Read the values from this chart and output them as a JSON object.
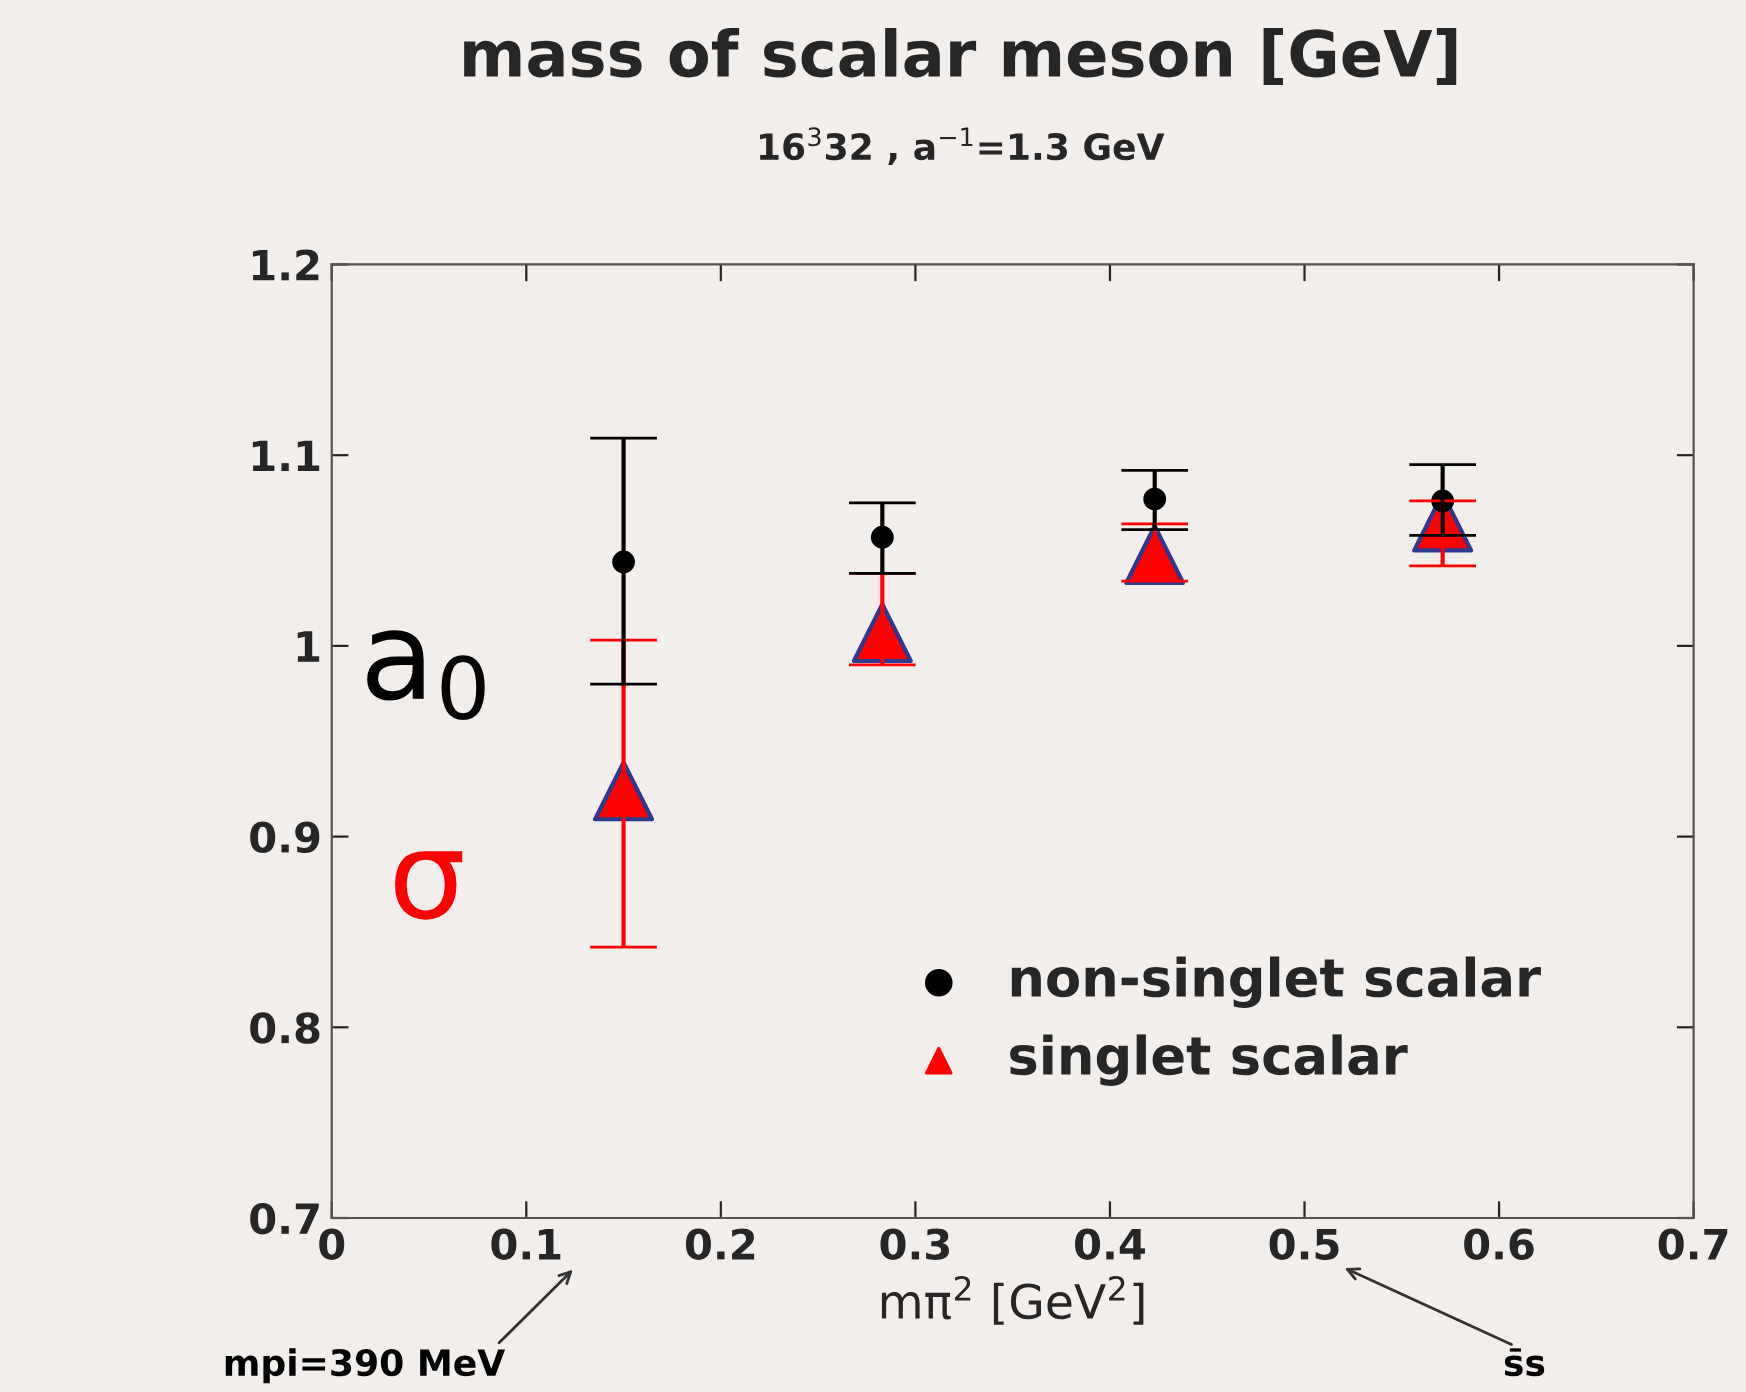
{
  "chart_data": {
    "type": "scatter",
    "title": "mass of scalar meson [GeV]",
    "subtitle": "16$^{3}$32 , a$^{−1}$=1.3 GeV",
    "xlabel": "mπ$^{2}$ [GeV$^{2}$]",
    "x": [
      0.15,
      0.283,
      0.423,
      0.571
    ],
    "series": [
      {
        "name": "non-singlet scalar",
        "color": "#000000",
        "marker": "circle",
        "values": [
          1.044,
          1.057,
          1.077,
          1.076
        ],
        "errors": [
          [
            0.98,
            1.109
          ],
          [
            1.038,
            1.075
          ],
          [
            1.061,
            1.092
          ],
          [
            1.058,
            1.095
          ]
        ]
      },
      {
        "name": "singlet scalar",
        "color": "#ff0000",
        "marker": "triangle",
        "values": [
          0.924,
          1.007,
          1.048,
          1.065
        ],
        "errors": [
          [
            0.842,
            1.003
          ],
          [
            0.99,
            1.038
          ],
          [
            1.034,
            1.064
          ],
          [
            1.042,
            1.076
          ]
        ]
      }
    ],
    "xlim": [
      0,
      0.7
    ],
    "xticks": [
      0,
      0.1,
      0.2,
      0.3,
      0.4,
      0.5,
      0.6,
      0.7
    ],
    "ylim": [
      0.7,
      1.2
    ],
    "yticks": [
      0.7,
      0.8,
      0.9,
      {
        "value": 1.0,
        "label": "1"
      },
      1.1,
      1.2
    ],
    "annotations": [
      "a$_{0}$",
      "σ",
      "mpi=390 MeV",
      "s̄s"
    ],
    "legend": "bottom right",
    "grid": false
  }
}
